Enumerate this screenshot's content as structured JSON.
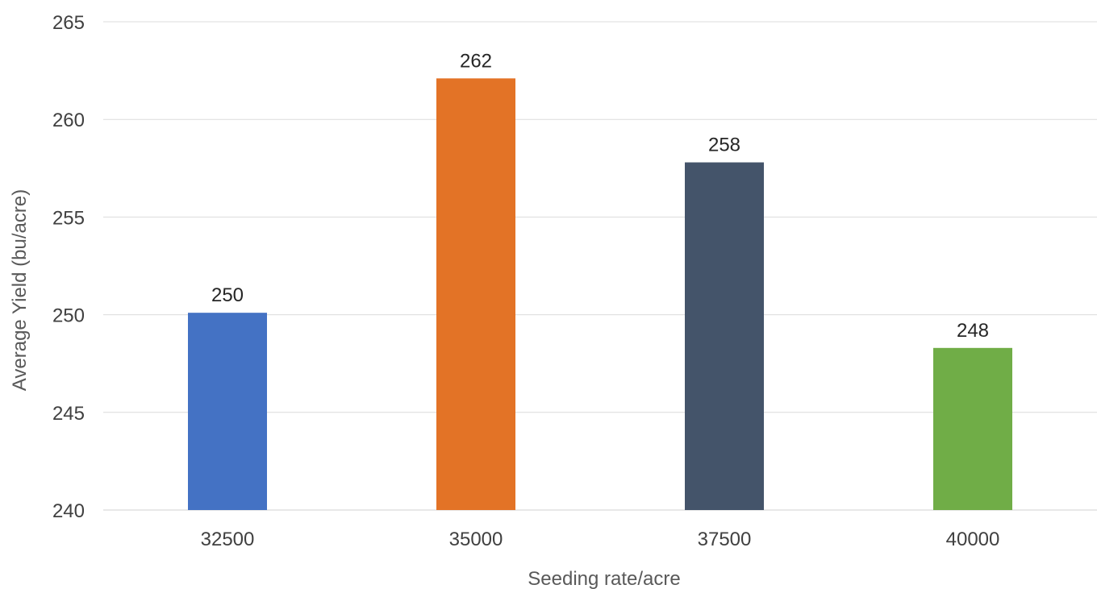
{
  "chart_data": {
    "type": "bar",
    "title": "",
    "xlabel": "Seeding rate/acre",
    "ylabel": "Average Yield (bu/acre)",
    "categories": [
      "32500",
      "35000",
      "37500",
      "40000"
    ],
    "values": [
      250.1,
      262.1,
      257.8,
      248.3
    ],
    "data_labels": [
      "250",
      "262",
      "258",
      "248"
    ],
    "colors": [
      "#4472C4",
      "#E37326",
      "#44546A",
      "#70AD47"
    ],
    "ylim": [
      240,
      265
    ],
    "yticks": [
      240,
      245,
      250,
      255,
      260,
      265
    ],
    "grid": true,
    "legend": "none"
  }
}
